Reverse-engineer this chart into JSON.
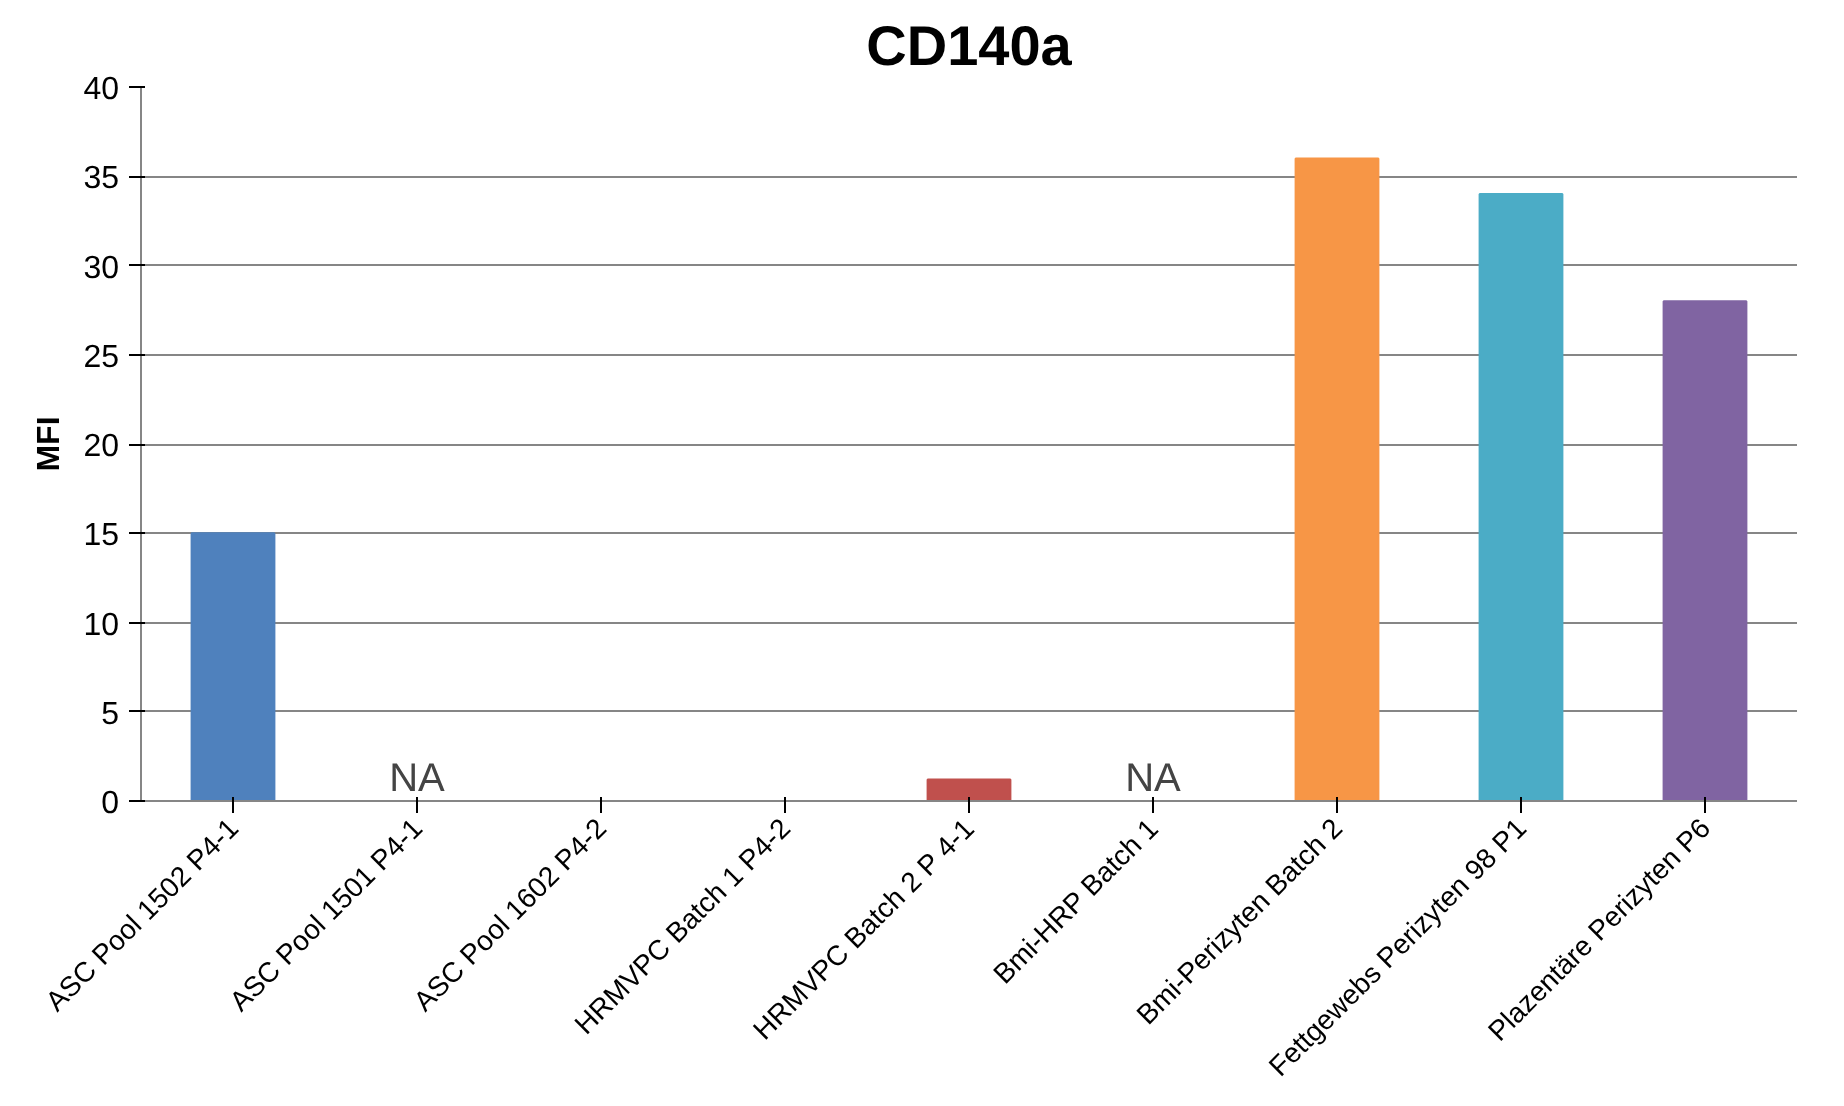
{
  "chart_data": {
    "type": "bar",
    "title": "CD140a",
    "ylabel": "MFI",
    "categories": [
      "ASC Pool 1502 P4-1",
      "ASC Pool 1501 P4-1",
      "ASC Pool 1602 P4-2",
      "HRMVPC Batch 1 P4-2",
      "HRMVPC Batch 2 P 4-1",
      "Bmi-HRP Batch 1",
      "Bmi-Perizyten Batch 2",
      "Fettgewebs Perizyten 98 P1",
      "Plazentäre Perizyten P6"
    ],
    "values": [
      15,
      null,
      0,
      0,
      1.2,
      null,
      36,
      34,
      28
    ],
    "colors": [
      "#4f81bd",
      "#c0504d",
      "#9bbb59",
      "#8064a2",
      "#c0504d",
      "#4bacc6",
      "#f79646",
      "#4bacc6",
      "#8064a2"
    ],
    "ylim": [
      0,
      40
    ],
    "yticks": [
      0,
      5,
      10,
      15,
      20,
      25,
      30,
      35,
      40
    ],
    "grid": "y",
    "annotations": [
      "NA",
      "NA"
    ]
  }
}
